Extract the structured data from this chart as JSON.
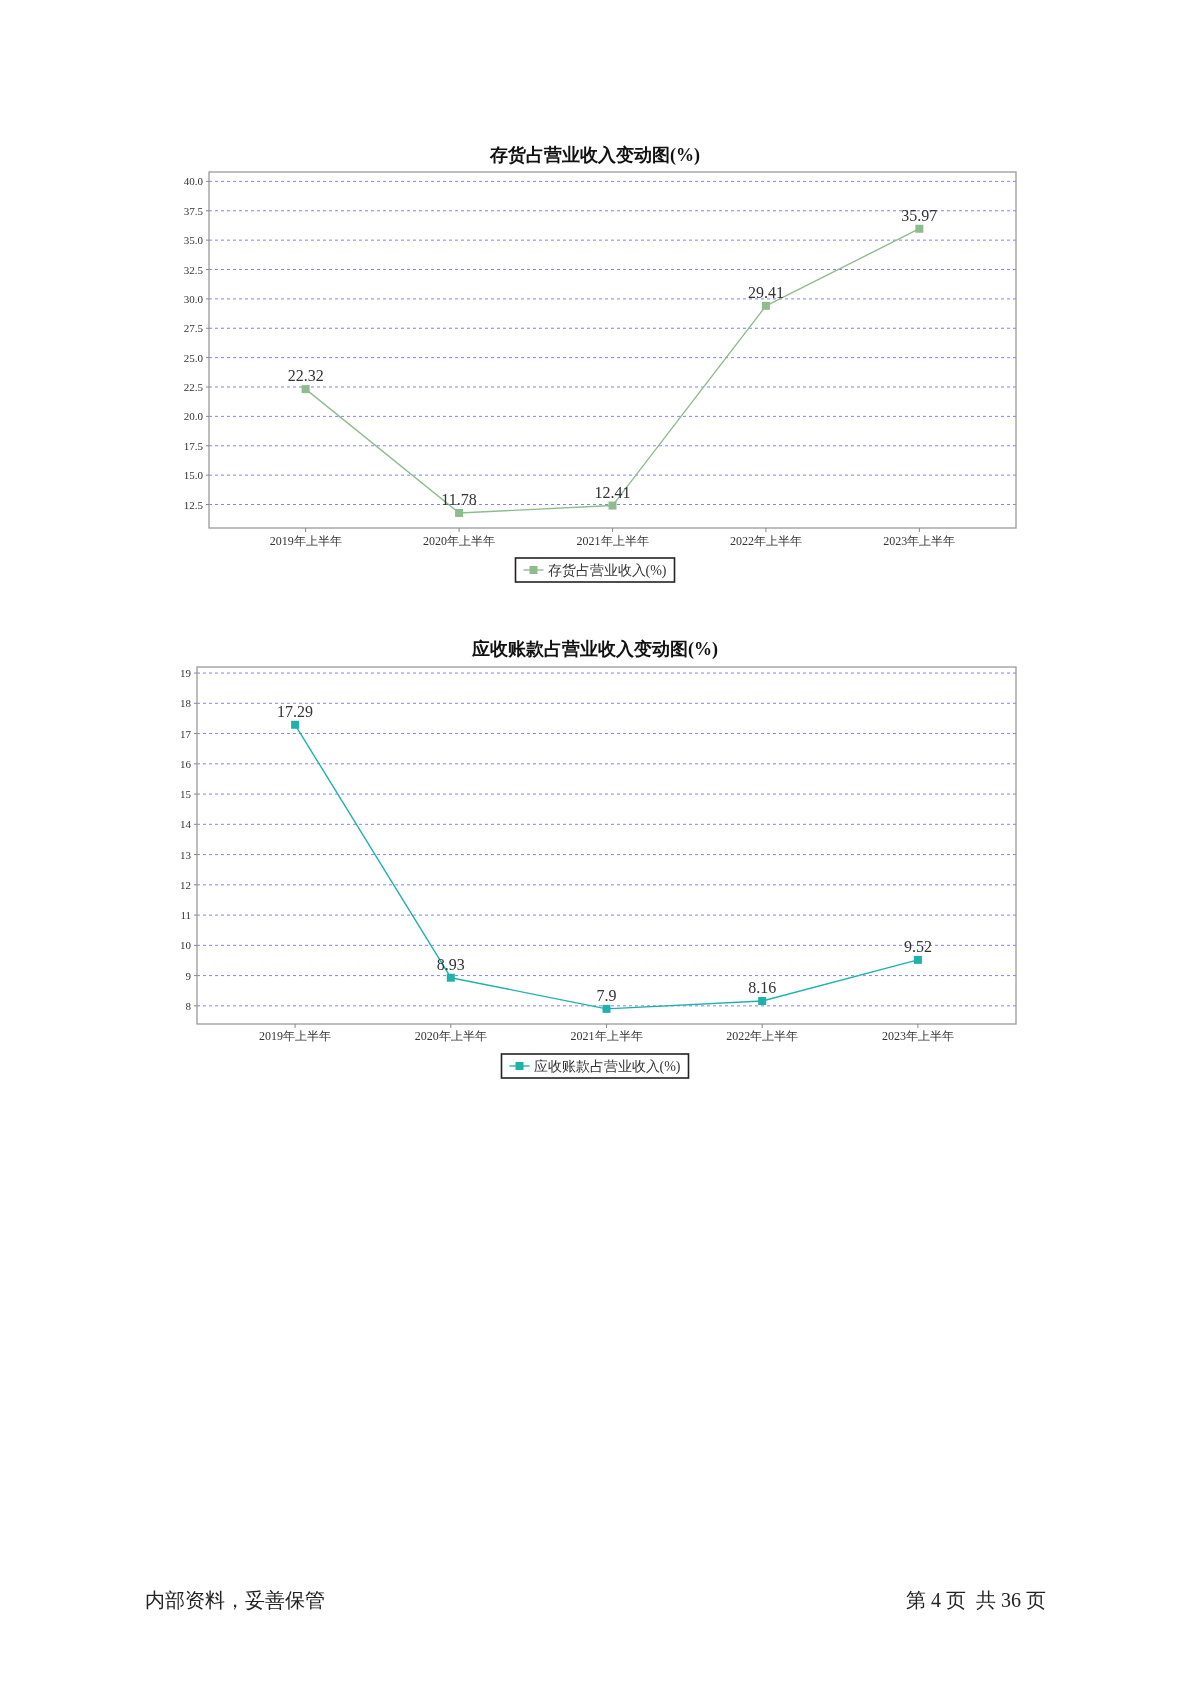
{
  "chart_data": [
    {
      "type": "line",
      "title": "存货占营业收入变动图(%)",
      "categories": [
        "2019年上半年",
        "2020年上半年",
        "2021年上半年",
        "2022年上半年",
        "2023年上半年"
      ],
      "series": [
        {
          "name": "存货占营业收入(%)",
          "color": "#8fbc8f",
          "values": [
            22.32,
            11.78,
            12.41,
            29.41,
            35.97
          ]
        }
      ],
      "ylim": [
        10.5,
        40.8
      ],
      "yticks": [
        12.5,
        {
          "value": 15,
          "label": "15.0"
        },
        17.5,
        {
          "value": 20,
          "label": "20.0"
        },
        22.5,
        {
          "value": 25,
          "label": "25.0"
        },
        27.5,
        {
          "value": 30,
          "label": "30.0"
        },
        32.5,
        {
          "value": 35,
          "label": "35.0"
        },
        37.5,
        {
          "value": 40,
          "label": "40.0"
        }
      ],
      "grid": "y",
      "legend": "bottom",
      "marker": "square",
      "data_labels": true
    },
    {
      "type": "line",
      "title": "应收账款占营业收入变动图(%)",
      "categories": [
        "2019年上半年",
        "2020年上半年",
        "2021年上半年",
        "2022年上半年",
        "2023年上半年"
      ],
      "series": [
        {
          "name": "应收账款占营业收入(%)",
          "color": "#20b2aa",
          "values": [
            17.29,
            8.93,
            7.9,
            8.16,
            9.52
          ]
        }
      ],
      "ylim": [
        7.4,
        19.2
      ],
      "yticks": [
        8,
        9,
        10,
        11,
        12,
        13,
        14,
        15,
        16,
        17,
        18,
        19
      ],
      "grid": "y",
      "legend": "bottom",
      "marker": "square",
      "data_labels": true,
      "annotations": [
        "内部资料，妥善保管",
        "第 4 页  共 36 页"
      ]
    }
  ]
}
